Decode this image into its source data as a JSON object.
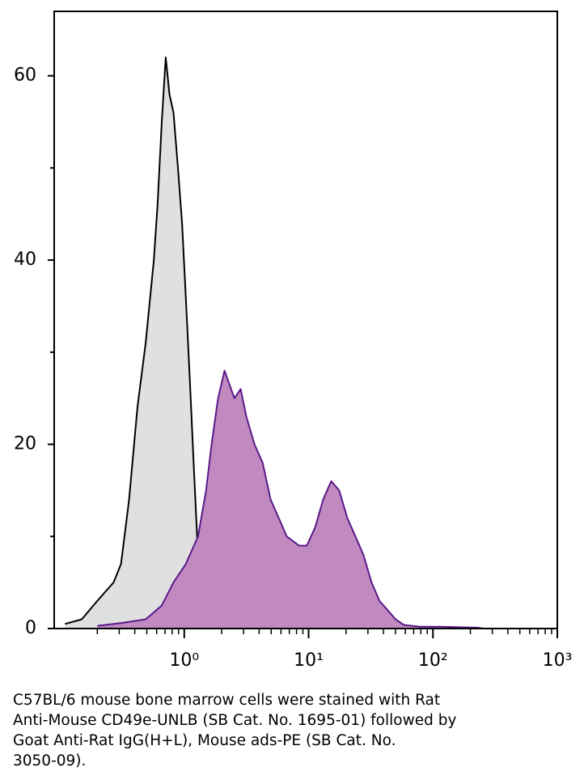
{
  "chart_data": {
    "type": "area",
    "xscale": "log",
    "xlim": [
      0.09,
      1000
    ],
    "xticks": [
      {
        "value": 1,
        "label": "10⁰"
      },
      {
        "value": 10,
        "label": "10¹"
      },
      {
        "value": 100,
        "label": "10²"
      },
      {
        "value": 1000,
        "label": "10³"
      }
    ],
    "xminorticks": [
      0.2,
      0.3,
      0.4,
      0.5,
      0.6,
      0.7,
      0.8,
      0.9,
      2,
      3,
      4,
      5,
      6,
      7,
      8,
      9,
      20,
      30,
      40,
      50,
      60,
      70,
      80,
      90,
      200,
      300,
      400,
      500,
      600,
      700,
      800,
      900
    ],
    "ylim": [
      0,
      67
    ],
    "yticks": [
      0,
      20,
      40,
      60
    ],
    "yminorticks": [
      10,
      30,
      50
    ],
    "series": [
      {
        "color": "#000000",
        "fill": "#e0e0e0",
        "x": [
          0.11,
          0.15,
          0.2,
          0.27,
          0.31,
          0.36,
          0.42,
          0.49,
          0.57,
          0.61,
          0.66,
          0.71,
          0.76,
          0.82,
          0.89,
          0.96,
          1.03,
          1.11,
          1.2,
          1.29,
          1.39,
          1.5,
          1.74,
          2.17,
          3,
          5,
          8
        ],
        "values": [
          0.5,
          1,
          3,
          5,
          7,
          14,
          24,
          31,
          40,
          46,
          55,
          62,
          58,
          56,
          50,
          44,
          36,
          27,
          17,
          8,
          4,
          2,
          0.5,
          0.3,
          0.2,
          0.2,
          0
        ]
      },
      {
        "color": "#5a1a8a",
        "fill": "#c08ac0",
        "x": [
          0.2,
          0.31,
          0.49,
          0.66,
          0.82,
          1.03,
          1.29,
          1.5,
          1.66,
          1.87,
          2.11,
          2.53,
          2.84,
          3.16,
          3.67,
          4.27,
          4.95,
          5.75,
          6.67,
          8.36,
          9.69,
          11.3,
          13.1,
          15.2,
          17.6,
          20.5,
          23.8,
          27.6,
          32.1,
          37.2,
          43.2,
          50.1,
          58.2,
          78.5,
          114,
          224,
          259
        ],
        "values": [
          0.3,
          0.6,
          1,
          2.5,
          5,
          7,
          10,
          15,
          20,
          25,
          28,
          25,
          26,
          23,
          20,
          18,
          14,
          12,
          10,
          9,
          9,
          11,
          14,
          16,
          15,
          12,
          10,
          8,
          5,
          3,
          2,
          1,
          0.4,
          0.2,
          0.2,
          0.1,
          0
        ]
      }
    ]
  },
  "caption_lines": [
    "C57BL/6 mouse bone marrow cells were stained with Rat",
    "Anti-Mouse CD49e-UNLB (SB Cat. No. 1695-01) followed by",
    "Goat Anti-Rat IgG(H+L), Mouse ads-PE (SB Cat. No.",
    "3050-09)."
  ]
}
